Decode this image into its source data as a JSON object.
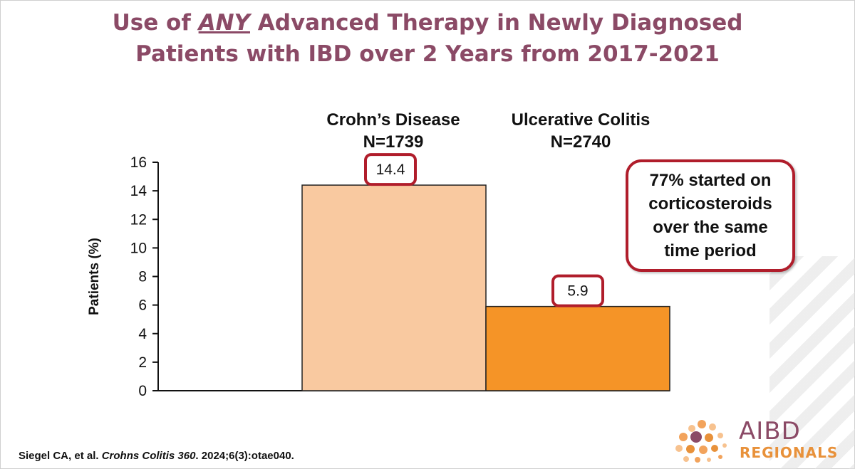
{
  "slide": {
    "title_line1_pre": "Use of ",
    "title_line1_emph": "ANY",
    "title_line1_post": " Advanced Therapy in Newly Diagnosed",
    "title_line2": "Patients with IBD over 2 Years from 2017-2021",
    "annotation": "77% started on corticosteroids over the same time period",
    "citation_pre": "Siegel CA, et al. ",
    "citation_journal": "Crohns Colitis 360",
    "citation_post": ". 2024;6(3):otae040."
  },
  "logo": {
    "line1": "AIBD",
    "line2": "REGIONALS"
  },
  "colors": {
    "title": "#8b4a66",
    "bar_cd": "#f9c9a0",
    "bar_uc": "#f59427",
    "callout_border": "#b01d2b",
    "logo_purple": "#8b4a66",
    "logo_orange": "#e8913a"
  },
  "chart_data": {
    "type": "bar",
    "title": "Use of ANY Advanced Therapy in Newly Diagnosed Patients with IBD over 2 Years from 2017-2021",
    "ylabel": "Patients (%)",
    "xlabel": "",
    "ylim": [
      0,
      16
    ],
    "yticks": [
      0,
      2,
      4,
      6,
      8,
      10,
      12,
      14,
      16
    ],
    "grid": false,
    "categories": [
      {
        "name": "Crohn’s Disease",
        "n": "N=1739"
      },
      {
        "name": "Ulcerative Colitis",
        "n": "N=2740"
      }
    ],
    "values": [
      14.4,
      5.9
    ],
    "value_labels": [
      "14.4",
      "5.9"
    ]
  }
}
